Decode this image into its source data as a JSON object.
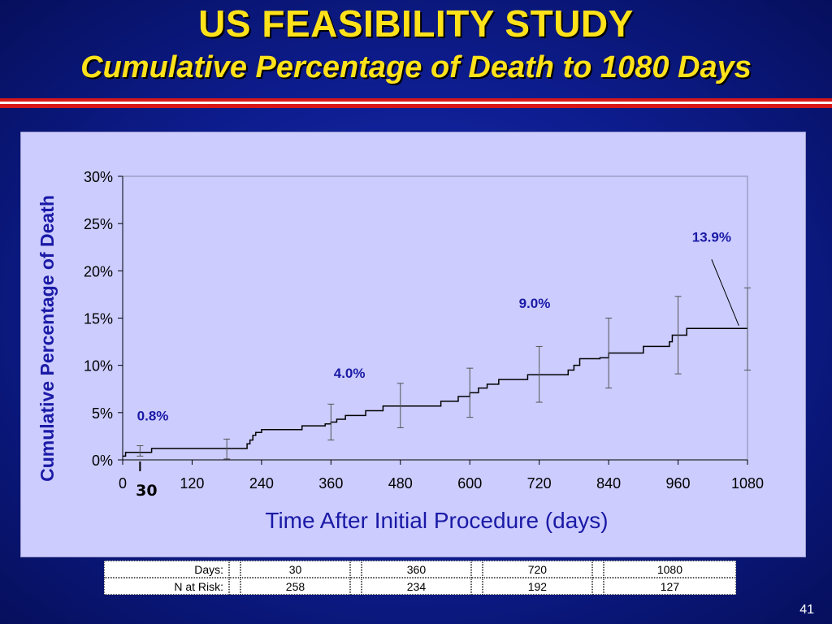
{
  "slide": {
    "title": "US FEASIBILITY STUDY",
    "subtitle": "Cumulative Percentage of Death to 1080 Days",
    "page_number": "41"
  },
  "colors": {
    "background": "#0d1c8c",
    "title": "#ffe21a",
    "panel": "#ccccff",
    "annotation": "#1a1aa6",
    "curve": "#000000",
    "rule_red": "#d81818"
  },
  "chart_data": {
    "type": "line",
    "title": "",
    "xlabel": "Time After Initial Procedure (days)",
    "ylabel": "Cumulative Percentage of Death",
    "xlim": [
      0,
      1080
    ],
    "ylim": [
      0,
      30
    ],
    "x_ticks": [
      0,
      120,
      240,
      360,
      480,
      600,
      720,
      840,
      960,
      1080
    ],
    "x_tick_labels": [
      "0",
      "120",
      "240",
      "360",
      "480",
      "600",
      "720",
      "840",
      "960",
      "1080"
    ],
    "y_ticks": [
      0,
      5,
      10,
      15,
      20,
      25,
      30
    ],
    "y_tick_labels": [
      "0%",
      "5%",
      "10%",
      "15%",
      "20%",
      "25%",
      "30%"
    ],
    "grid": false,
    "marker": {
      "x": 30,
      "label": "30"
    },
    "series": [
      {
        "step": true,
        "x": [
          0,
          5,
          30,
          50,
          178,
          215,
          220,
          225,
          230,
          240,
          310,
          350,
          360,
          370,
          385,
          420,
          450,
          550,
          580,
          600,
          615,
          630,
          650,
          700,
          770,
          780,
          790,
          825,
          840,
          900,
          945,
          950,
          975,
          1080
        ],
        "y": [
          0.4,
          0.8,
          0.8,
          1.2,
          1.2,
          1.7,
          2.1,
          2.6,
          2.9,
          3.2,
          3.6,
          3.8,
          4.0,
          4.3,
          4.7,
          5.2,
          5.7,
          6.2,
          6.7,
          7.1,
          7.6,
          8.0,
          8.5,
          9.0,
          9.5,
          10.0,
          10.7,
          10.8,
          11.3,
          12.0,
          12.5,
          13.2,
          13.9,
          13.9
        ]
      }
    ],
    "error_bars": [
      {
        "x": 30,
        "y": 0.8,
        "low": 0.4,
        "high": 1.5
      },
      {
        "x": 180,
        "y": 1.2,
        "low": 0.1,
        "high": 2.2
      },
      {
        "x": 360,
        "y": 4.0,
        "low": 2.1,
        "high": 5.9
      },
      {
        "x": 480,
        "y": 5.7,
        "low": 3.4,
        "high": 8.1
      },
      {
        "x": 600,
        "y": 7.1,
        "low": 4.5,
        "high": 9.7
      },
      {
        "x": 720,
        "y": 9.0,
        "low": 6.1,
        "high": 12.0
      },
      {
        "x": 840,
        "y": 11.3,
        "low": 7.6,
        "high": 15.0
      },
      {
        "x": 960,
        "y": 13.2,
        "low": 9.1,
        "high": 17.3
      },
      {
        "x": 1080,
        "y": 13.9,
        "low": 9.5,
        "high": 18.2
      }
    ],
    "annotations": [
      {
        "text": "0.8%",
        "x": 52,
        "y": 4.7
      },
      {
        "text": "4.0%",
        "x": 392,
        "y": 9.2
      },
      {
        "text": "9.0%",
        "x": 712,
        "y": 16.6
      },
      {
        "text": "13.9%",
        "x": 1018,
        "y": 23.6
      }
    ],
    "pointer": {
      "from": [
        1018,
        21.2
      ],
      "to": [
        1065,
        14.2
      ]
    }
  },
  "risk_table": {
    "rows": [
      {
        "label": "Days:",
        "values": [
          "30",
          "360",
          "720",
          "1080"
        ]
      },
      {
        "label": "N at Risk:",
        "values": [
          "258",
          "234",
          "192",
          "127"
        ]
      }
    ]
  }
}
